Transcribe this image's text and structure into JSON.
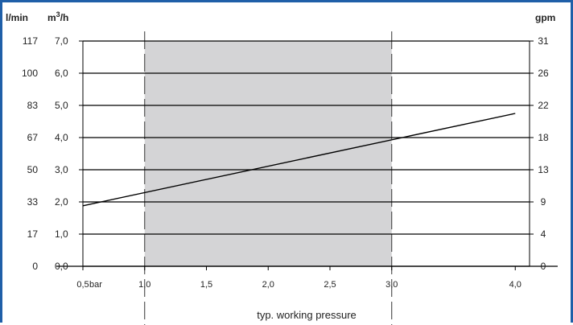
{
  "colors": {
    "frame": "#1f5fa8",
    "band": "#d4d4d6",
    "grid": "#000000",
    "line": "#000000",
    "text": "#222222"
  },
  "chart_data": {
    "type": "line",
    "title": "",
    "xlabel": "bar",
    "ylabel_left_1": "l/min",
    "ylabel_left_2_base": "m",
    "ylabel_left_2_sup": "3",
    "ylabel_left_2_tail": "/h",
    "ylabel_right": "gpm",
    "xlim": [
      0.5,
      4.0
    ],
    "ylim": [
      0,
      7
    ],
    "grid": true,
    "x_ticks": [
      {
        "value": 0.5,
        "label": "0,5"
      },
      {
        "value": 1.0,
        "label": "1,0"
      },
      {
        "value": 1.5,
        "label": "1,5"
      },
      {
        "value": 2.0,
        "label": "2,0"
      },
      {
        "value": 2.5,
        "label": "2,5"
      },
      {
        "value": 3.0,
        "label": "3,0"
      },
      {
        "value": 4.0,
        "label": "4,0"
      }
    ],
    "y_ticks": [
      {
        "value": 0,
        "lmin": "0",
        "m3h": "0,0",
        "gpm": "0"
      },
      {
        "value": 1,
        "lmin": "17",
        "m3h": "1,0",
        "gpm": "4"
      },
      {
        "value": 2,
        "lmin": "33",
        "m3h": "2,0",
        "gpm": "9"
      },
      {
        "value": 3,
        "lmin": "50",
        "m3h": "3,0",
        "gpm": "13"
      },
      {
        "value": 4,
        "lmin": "67",
        "m3h": "4,0",
        "gpm": "18"
      },
      {
        "value": 5,
        "lmin": "83",
        "m3h": "5,0",
        "gpm": "22"
      },
      {
        "value": 6,
        "lmin": "100",
        "m3h": "6,0",
        "gpm": "26"
      },
      {
        "value": 7,
        "lmin": "117",
        "m3h": "7,0",
        "gpm": "31"
      }
    ],
    "highlight_band": {
      "x_from": 1.0,
      "x_to": 3.0,
      "label": "typ. working pressure"
    },
    "series": [
      {
        "x": [
          0.5,
          4.0
        ],
        "y": [
          1.88,
          4.75
        ]
      }
    ]
  }
}
